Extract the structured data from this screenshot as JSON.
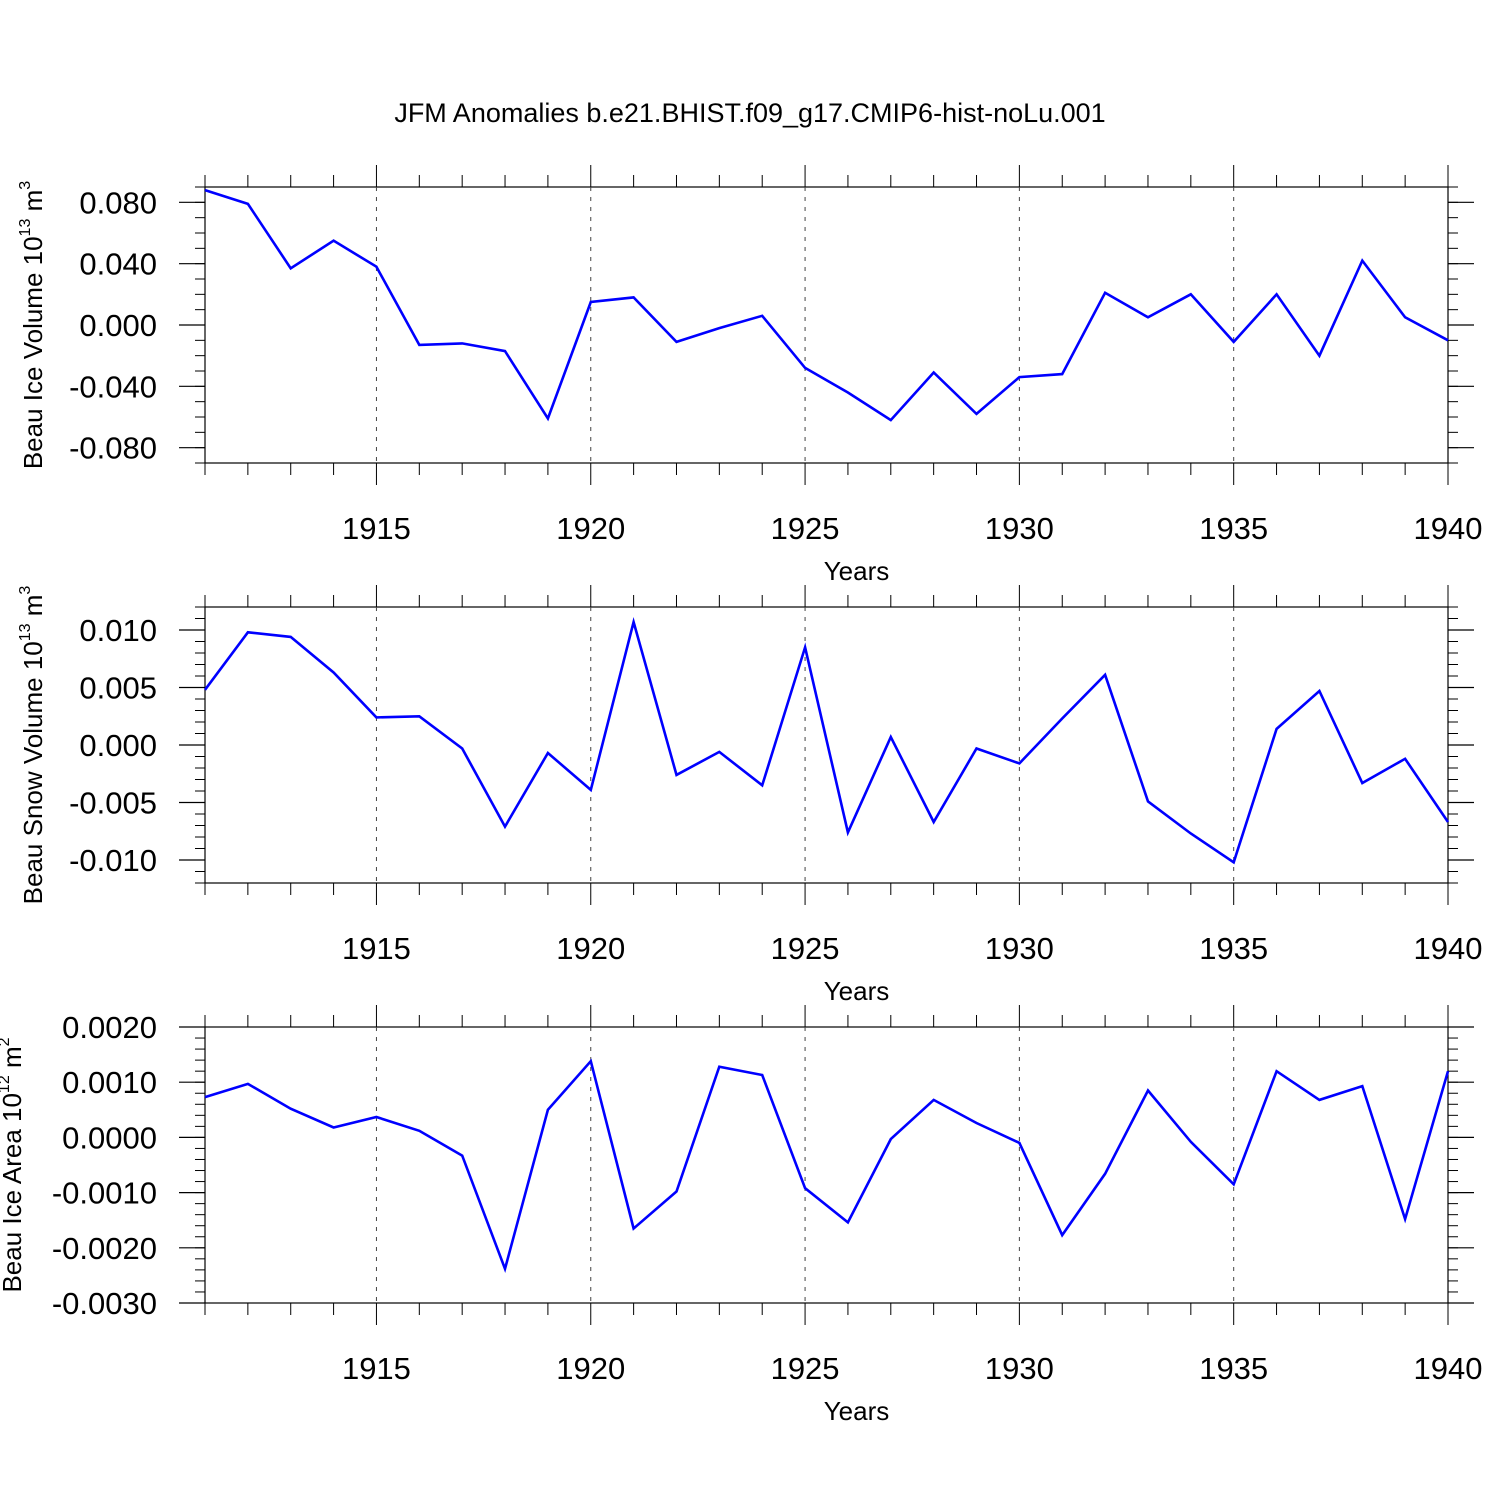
{
  "title": "JFM Anomalies b.e21.BHIST.f09_g17.CMIP6-hist-noLu.001",
  "colors": {
    "line": "#0000ff",
    "axis": "#000000",
    "grid": "#000000"
  },
  "chart_data": [
    {
      "type": "line",
      "xlabel": "Years",
      "ylabel": "Beau Ice Volume 10",
      "ylabel_exp": "13",
      "ylabel_unit": " m",
      "ylabel_unit_exp": "3",
      "xlim": [
        1911,
        1940
      ],
      "ylim": [
        -0.09,
        0.09
      ],
      "x_ticks": [
        1915,
        1920,
        1925,
        1930,
        1935,
        1940
      ],
      "x_tick_labels": [
        "1915",
        "1920",
        "1925",
        "1930",
        "1935",
        "1940"
      ],
      "y_ticks": [
        0.08,
        0.04,
        0.0,
        -0.04,
        -0.08
      ],
      "y_tick_labels": [
        "0.080",
        "0.040",
        "0.000",
        "-0.040",
        "-0.080"
      ],
      "y_minor_step": 0.01,
      "grid": "vertical dashed at major x ticks",
      "x": [
        1911,
        1912,
        1913,
        1914,
        1915,
        1916,
        1917,
        1918,
        1919,
        1920,
        1921,
        1922,
        1923,
        1924,
        1925,
        1926,
        1927,
        1928,
        1929,
        1930,
        1931,
        1932,
        1933,
        1934,
        1935,
        1936,
        1937,
        1938,
        1939,
        1940
      ],
      "values": [
        0.088,
        0.079,
        0.037,
        0.055,
        0.038,
        -0.013,
        -0.012,
        -0.017,
        -0.061,
        0.015,
        0.018,
        -0.011,
        -0.002,
        0.006,
        -0.028,
        -0.044,
        -0.062,
        -0.031,
        -0.058,
        -0.034,
        -0.032,
        0.021,
        0.005,
        0.02,
        -0.011,
        0.02,
        -0.02,
        0.042,
        0.005,
        -0.01
      ]
    },
    {
      "type": "line",
      "xlabel": "Years",
      "ylabel": "Beau Snow Volume 10",
      "ylabel_exp": "13",
      "ylabel_unit": " m",
      "ylabel_unit_exp": "3",
      "xlim": [
        1911,
        1940
      ],
      "ylim": [
        -0.012,
        0.012
      ],
      "x_ticks": [
        1915,
        1920,
        1925,
        1930,
        1935,
        1940
      ],
      "x_tick_labels": [
        "1915",
        "1920",
        "1925",
        "1930",
        "1935",
        "1940"
      ],
      "y_ticks": [
        0.01,
        0.005,
        0.0,
        -0.005,
        -0.01
      ],
      "y_tick_labels": [
        "0.010",
        "0.005",
        "0.000",
        "-0.005",
        "-0.010"
      ],
      "y_minor_step": 0.001,
      "grid": "vertical dashed at major x ticks",
      "x": [
        1911,
        1912,
        1913,
        1914,
        1915,
        1916,
        1917,
        1918,
        1919,
        1920,
        1921,
        1922,
        1923,
        1924,
        1925,
        1926,
        1927,
        1928,
        1929,
        1930,
        1931,
        1932,
        1933,
        1934,
        1935,
        1936,
        1937,
        1938,
        1939,
        1940
      ],
      "values": [
        0.0048,
        0.0098,
        0.0094,
        0.0063,
        0.0024,
        0.0025,
        -0.0003,
        -0.0071,
        -0.0007,
        -0.0039,
        0.0107,
        -0.0026,
        -0.0006,
        -0.0035,
        0.0085,
        -0.0076,
        0.0007,
        -0.0067,
        -0.0003,
        -0.0016,
        0.0023,
        0.0061,
        -0.0049,
        -0.0077,
        -0.0102,
        0.0014,
        0.0047,
        -0.0033,
        -0.0012,
        -0.0067
      ]
    },
    {
      "type": "line",
      "xlabel": "Years",
      "ylabel": "Beau Ice Area 10",
      "ylabel_exp": "12",
      "ylabel_unit": " m",
      "ylabel_unit_exp": "2",
      "xlim": [
        1911,
        1940
      ],
      "ylim": [
        -0.003,
        0.002
      ],
      "x_ticks": [
        1915,
        1920,
        1925,
        1930,
        1935,
        1940
      ],
      "x_tick_labels": [
        "1915",
        "1920",
        "1925",
        "1930",
        "1935",
        "1940"
      ],
      "y_ticks": [
        0.002,
        0.001,
        0.0,
        -0.001,
        -0.002,
        -0.003
      ],
      "y_tick_labels": [
        "0.0020",
        "0.0010",
        "0.0000",
        "-0.0010",
        "-0.0020",
        "-0.0030"
      ],
      "y_minor_step": 0.0002,
      "grid": "vertical dashed at major x ticks",
      "x": [
        1911,
        1912,
        1913,
        1914,
        1915,
        1916,
        1917,
        1918,
        1919,
        1920,
        1921,
        1922,
        1923,
        1924,
        1925,
        1926,
        1927,
        1928,
        1929,
        1930,
        1931,
        1932,
        1933,
        1934,
        1935,
        1936,
        1937,
        1938,
        1939,
        1940
      ],
      "values": [
        0.00073,
        0.00097,
        0.00052,
        0.00018,
        0.00037,
        0.00012,
        -0.00033,
        -0.00238,
        0.0005,
        0.00138,
        -0.00165,
        -0.00098,
        0.00128,
        0.00113,
        -0.00092,
        -0.00154,
        -3e-05,
        0.00068,
        0.00026,
        -0.0001,
        -0.00177,
        -0.00066,
        0.00085,
        -8e-05,
        -0.00085,
        0.0012,
        0.00068,
        0.00093,
        -0.00148,
        0.0012
      ]
    }
  ]
}
